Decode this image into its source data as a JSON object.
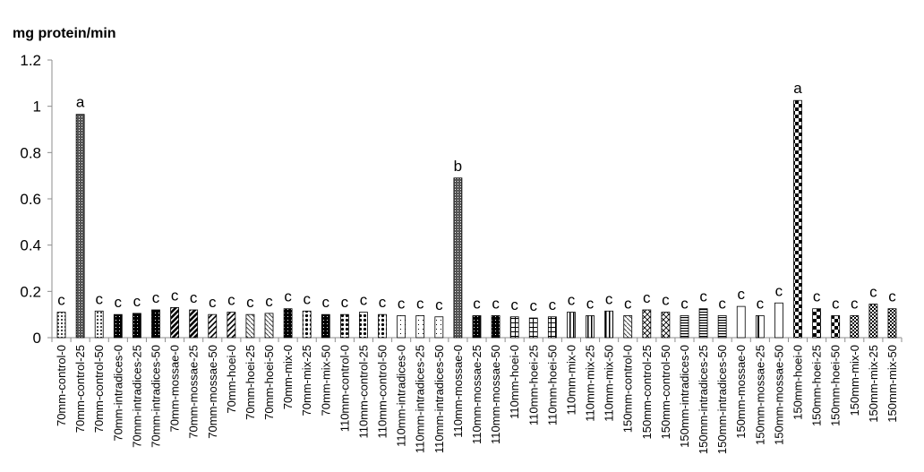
{
  "chart_data": {
    "type": "bar",
    "title": "",
    "ylabel": "mg protein/min",
    "xlabel": "",
    "ylim": [
      0,
      1.2
    ],
    "yticks": [
      "0",
      "0.2",
      "0.4",
      "0.6",
      "0.8",
      "1",
      "1.2"
    ],
    "grid": false,
    "legend": "none",
    "categories": [
      "70mm-control-0",
      "70mm-control-25",
      "70mm-control-50",
      "70mm-intradices-0",
      "70mm-intradices-25",
      "70mm-intradices-50",
      "70mm-mossae-0",
      "70mm-mossae-25",
      "70mm-mossae-50",
      "70mm-hoei-0",
      "70mm-hoei-25",
      "70mm-hoei-50",
      "70mm-mix-0",
      "70mm-mix-25",
      "70mm-mix-50",
      "110mm-control-0",
      "110mm-control-25",
      "110mm-control-50",
      "110mm-intradices-0",
      "110mm-intradices-25",
      "110mm-intradices-50",
      "110mm-mossae-0",
      "110mm-mossae-25",
      "110mm-mossae-50",
      "110mm-hoei-0",
      "110mm-hoei-25",
      "110mm-hoei-50",
      "110mm-mix-0",
      "110mm-mix-25",
      "110mm-mix-50",
      "150mm-control-0",
      "150mm-control-25",
      "150mm-control-50",
      "150mm-intradices-0",
      "150mm-intradices-25",
      "150mm-intradices-50",
      "150mm-mossae-0",
      "150mm-mossae-25",
      "150mm-mossae-50",
      "150mm-hoei-0",
      "150mm-hoei-25",
      "150mm-hoei-50",
      "150mm-mix-0",
      "150mm-mix-25",
      "150mm-mix-50"
    ],
    "values": [
      0.11,
      0.965,
      0.115,
      0.1,
      0.105,
      0.12,
      0.13,
      0.12,
      0.1,
      0.11,
      0.1,
      0.105,
      0.125,
      0.115,
      0.1,
      0.1,
      0.11,
      0.1,
      0.095,
      0.095,
      0.09,
      0.69,
      0.095,
      0.095,
      0.09,
      0.085,
      0.09,
      0.11,
      0.095,
      0.115,
      0.095,
      0.12,
      0.11,
      0.095,
      0.125,
      0.095,
      0.135,
      0.095,
      0.15,
      1.025,
      0.125,
      0.095,
      0.095,
      0.145,
      0.125
    ],
    "significance_letters": [
      "c",
      "a",
      "c",
      "c",
      "c",
      "c",
      "c",
      "c",
      "c",
      "c",
      "c",
      "c",
      "c",
      "c",
      "c",
      "c",
      "c",
      "c",
      "c",
      "c",
      "c",
      "b",
      "c",
      "c",
      "c",
      "c",
      "c",
      "c",
      "c",
      "c",
      "c",
      "c",
      "c",
      "c",
      "c",
      "c",
      "c",
      "c",
      "c",
      "a",
      "c",
      "c",
      "c",
      "c",
      "c"
    ]
  }
}
